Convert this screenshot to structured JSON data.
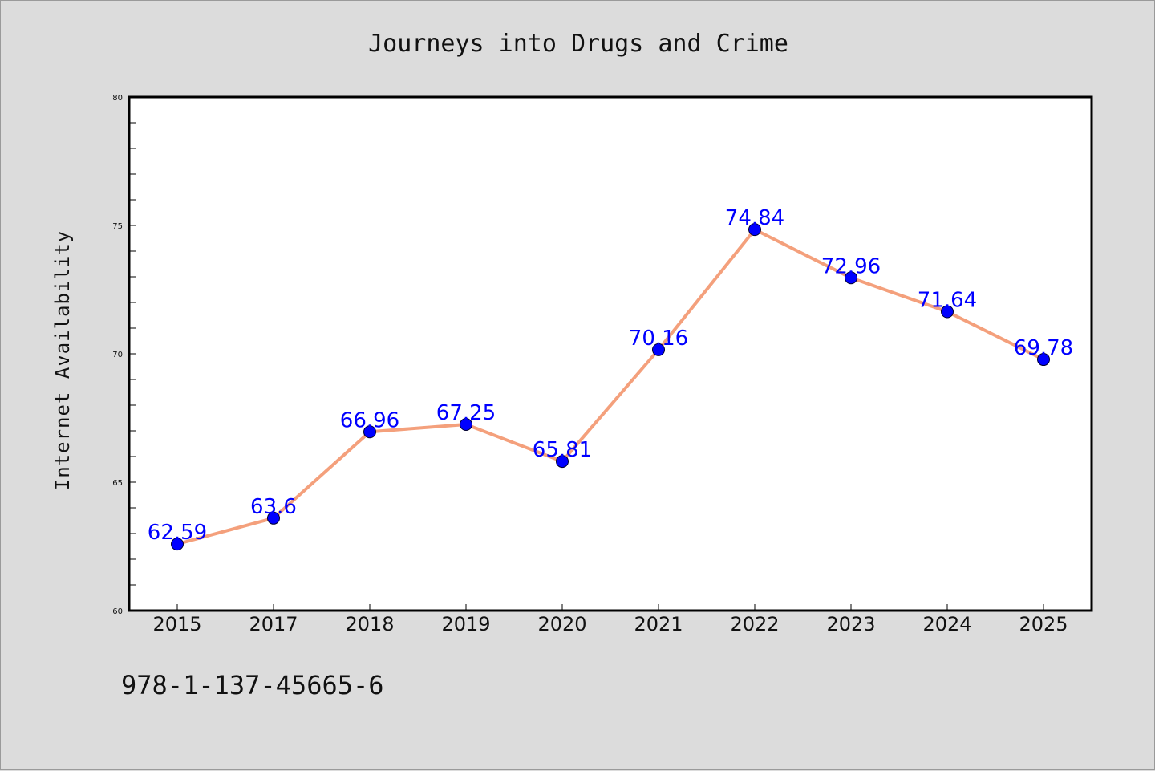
{
  "chart_data": {
    "type": "line",
    "title": "Journeys into Drugs and Crime",
    "xlabel": "",
    "ylabel": "Internet Availability",
    "categories": [
      "2015",
      "2017",
      "2018",
      "2019",
      "2020",
      "2021",
      "2022",
      "2023",
      "2024",
      "2025"
    ],
    "series": [
      {
        "values": [
          62.59,
          63.6,
          66.96,
          67.25,
          65.81,
          70.16,
          74.84,
          72.96,
          71.64,
          69.78
        ],
        "data_labels": [
          "62.59",
          "63.6",
          "66.96",
          "67.25",
          "65.81",
          "70.16",
          "74.84",
          "72.96",
          "71.64",
          "69.78"
        ],
        "line_color": "#f4a07c",
        "marker_color": "#0000ff"
      }
    ],
    "ylim": [
      60,
      80
    ],
    "y_ticks": [
      60,
      65,
      70,
      75,
      80
    ],
    "y_tick_labels": [
      "60",
      "65",
      "70",
      "75",
      "80"
    ],
    "grid": false,
    "legend": "none"
  },
  "footer": {
    "isbn": "978-1-137-45665-6"
  },
  "colors": {
    "background": "#dcdcdc",
    "plot_area": "#ffffff",
    "label": "#0000ff"
  }
}
